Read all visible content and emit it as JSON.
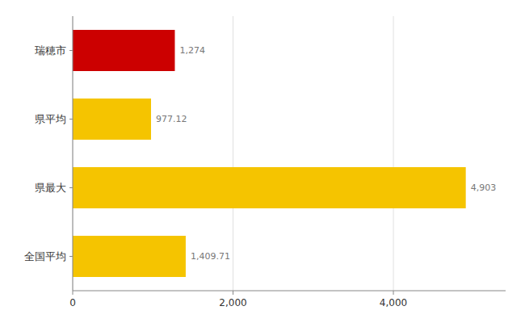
{
  "chart_data": {
    "type": "bar",
    "orientation": "horizontal",
    "categories": [
      "瑞穂市",
      "県平均",
      "県最大",
      "全国平均"
    ],
    "values": [
      1274,
      977.12,
      4903,
      1409.71
    ],
    "value_labels": [
      "1,274",
      "977.12",
      "4,903",
      "1,409.71"
    ],
    "data_labels": true,
    "colors": [
      "#cc0000",
      "#f5c400",
      "#f5c400",
      "#f5c400"
    ],
    "xlim": [
      0,
      5400
    ],
    "xticks": [
      0,
      {
        "value": 2000,
        "label": "2,000"
      },
      {
        "value": 4000,
        "label": "4,000"
      }
    ],
    "grid": true
  }
}
